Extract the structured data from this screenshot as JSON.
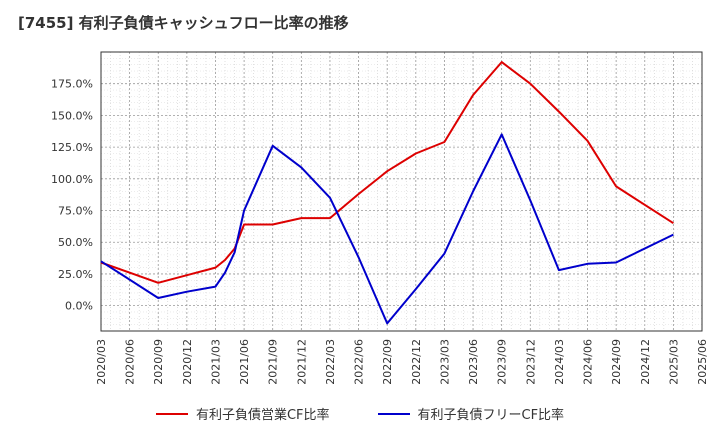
{
  "chart_data": {
    "type": "line",
    "title": "[7455]  有利子負債キャッシュフロー比率の推移",
    "x": [
      "2020/03",
      "2020/06",
      "2020/09",
      "2020/12",
      "2021/03",
      "2021/06",
      "2021/09",
      "2021/12",
      "2022/03",
      "2022/06",
      "2022/09",
      "2022/12",
      "2023/03",
      "2023/06",
      "2023/09",
      "2023/12",
      "2024/03",
      "2024/06",
      "2024/09",
      "2024/12",
      "2025/03",
      "2025/06"
    ],
    "y_ticks": [
      "0.0%",
      "25.0%",
      "50.0%",
      "75.0%",
      "100.0%",
      "125.0%",
      "150.0%",
      "175.0%"
    ],
    "ylim": [
      -20,
      200
    ],
    "grid": true,
    "legend_position": "bottom",
    "series": [
      {
        "name": "有利子負債営業CF比率",
        "color": "#dd0000",
        "points": [
          [
            "2020/03",
            34
          ],
          [
            "2020/09",
            18
          ],
          [
            "2020/12",
            24
          ],
          [
            "2021/03",
            30
          ],
          [
            "2021/04",
            36
          ],
          [
            "2021/05",
            45
          ],
          [
            "2021/06",
            64
          ],
          [
            "2021/09",
            64
          ],
          [
            "2021/12",
            69
          ],
          [
            "2022/03",
            69
          ],
          [
            "2022/06",
            88
          ],
          [
            "2022/09",
            106
          ],
          [
            "2022/12",
            120
          ],
          [
            "2023/03",
            129
          ],
          [
            "2023/06",
            166
          ],
          [
            "2023/09",
            192
          ],
          [
            "2023/12",
            175
          ],
          [
            "2024/03",
            153
          ],
          [
            "2024/06",
            130
          ],
          [
            "2024/09",
            94
          ],
          [
            "2025/03",
            65
          ]
        ]
      },
      {
        "name": "有利子負債フリーCF比率",
        "color": "#0000cc",
        "points": [
          [
            "2020/03",
            35
          ],
          [
            "2020/09",
            6
          ],
          [
            "2020/12",
            11
          ],
          [
            "2021/03",
            15
          ],
          [
            "2021/04",
            26
          ],
          [
            "2021/05",
            42
          ],
          [
            "2021/06",
            75
          ],
          [
            "2021/09",
            126
          ],
          [
            "2021/12",
            109
          ],
          [
            "2022/03",
            85
          ],
          [
            "2022/06",
            38
          ],
          [
            "2022/09",
            -14
          ],
          [
            "2022/12",
            13
          ],
          [
            "2023/03",
            41
          ],
          [
            "2023/06",
            90
          ],
          [
            "2023/09",
            135
          ],
          [
            "2023/12",
            83
          ],
          [
            "2024/03",
            28
          ],
          [
            "2024/06",
            33
          ],
          [
            "2024/09",
            34
          ],
          [
            "2025/03",
            56
          ]
        ]
      }
    ]
  }
}
